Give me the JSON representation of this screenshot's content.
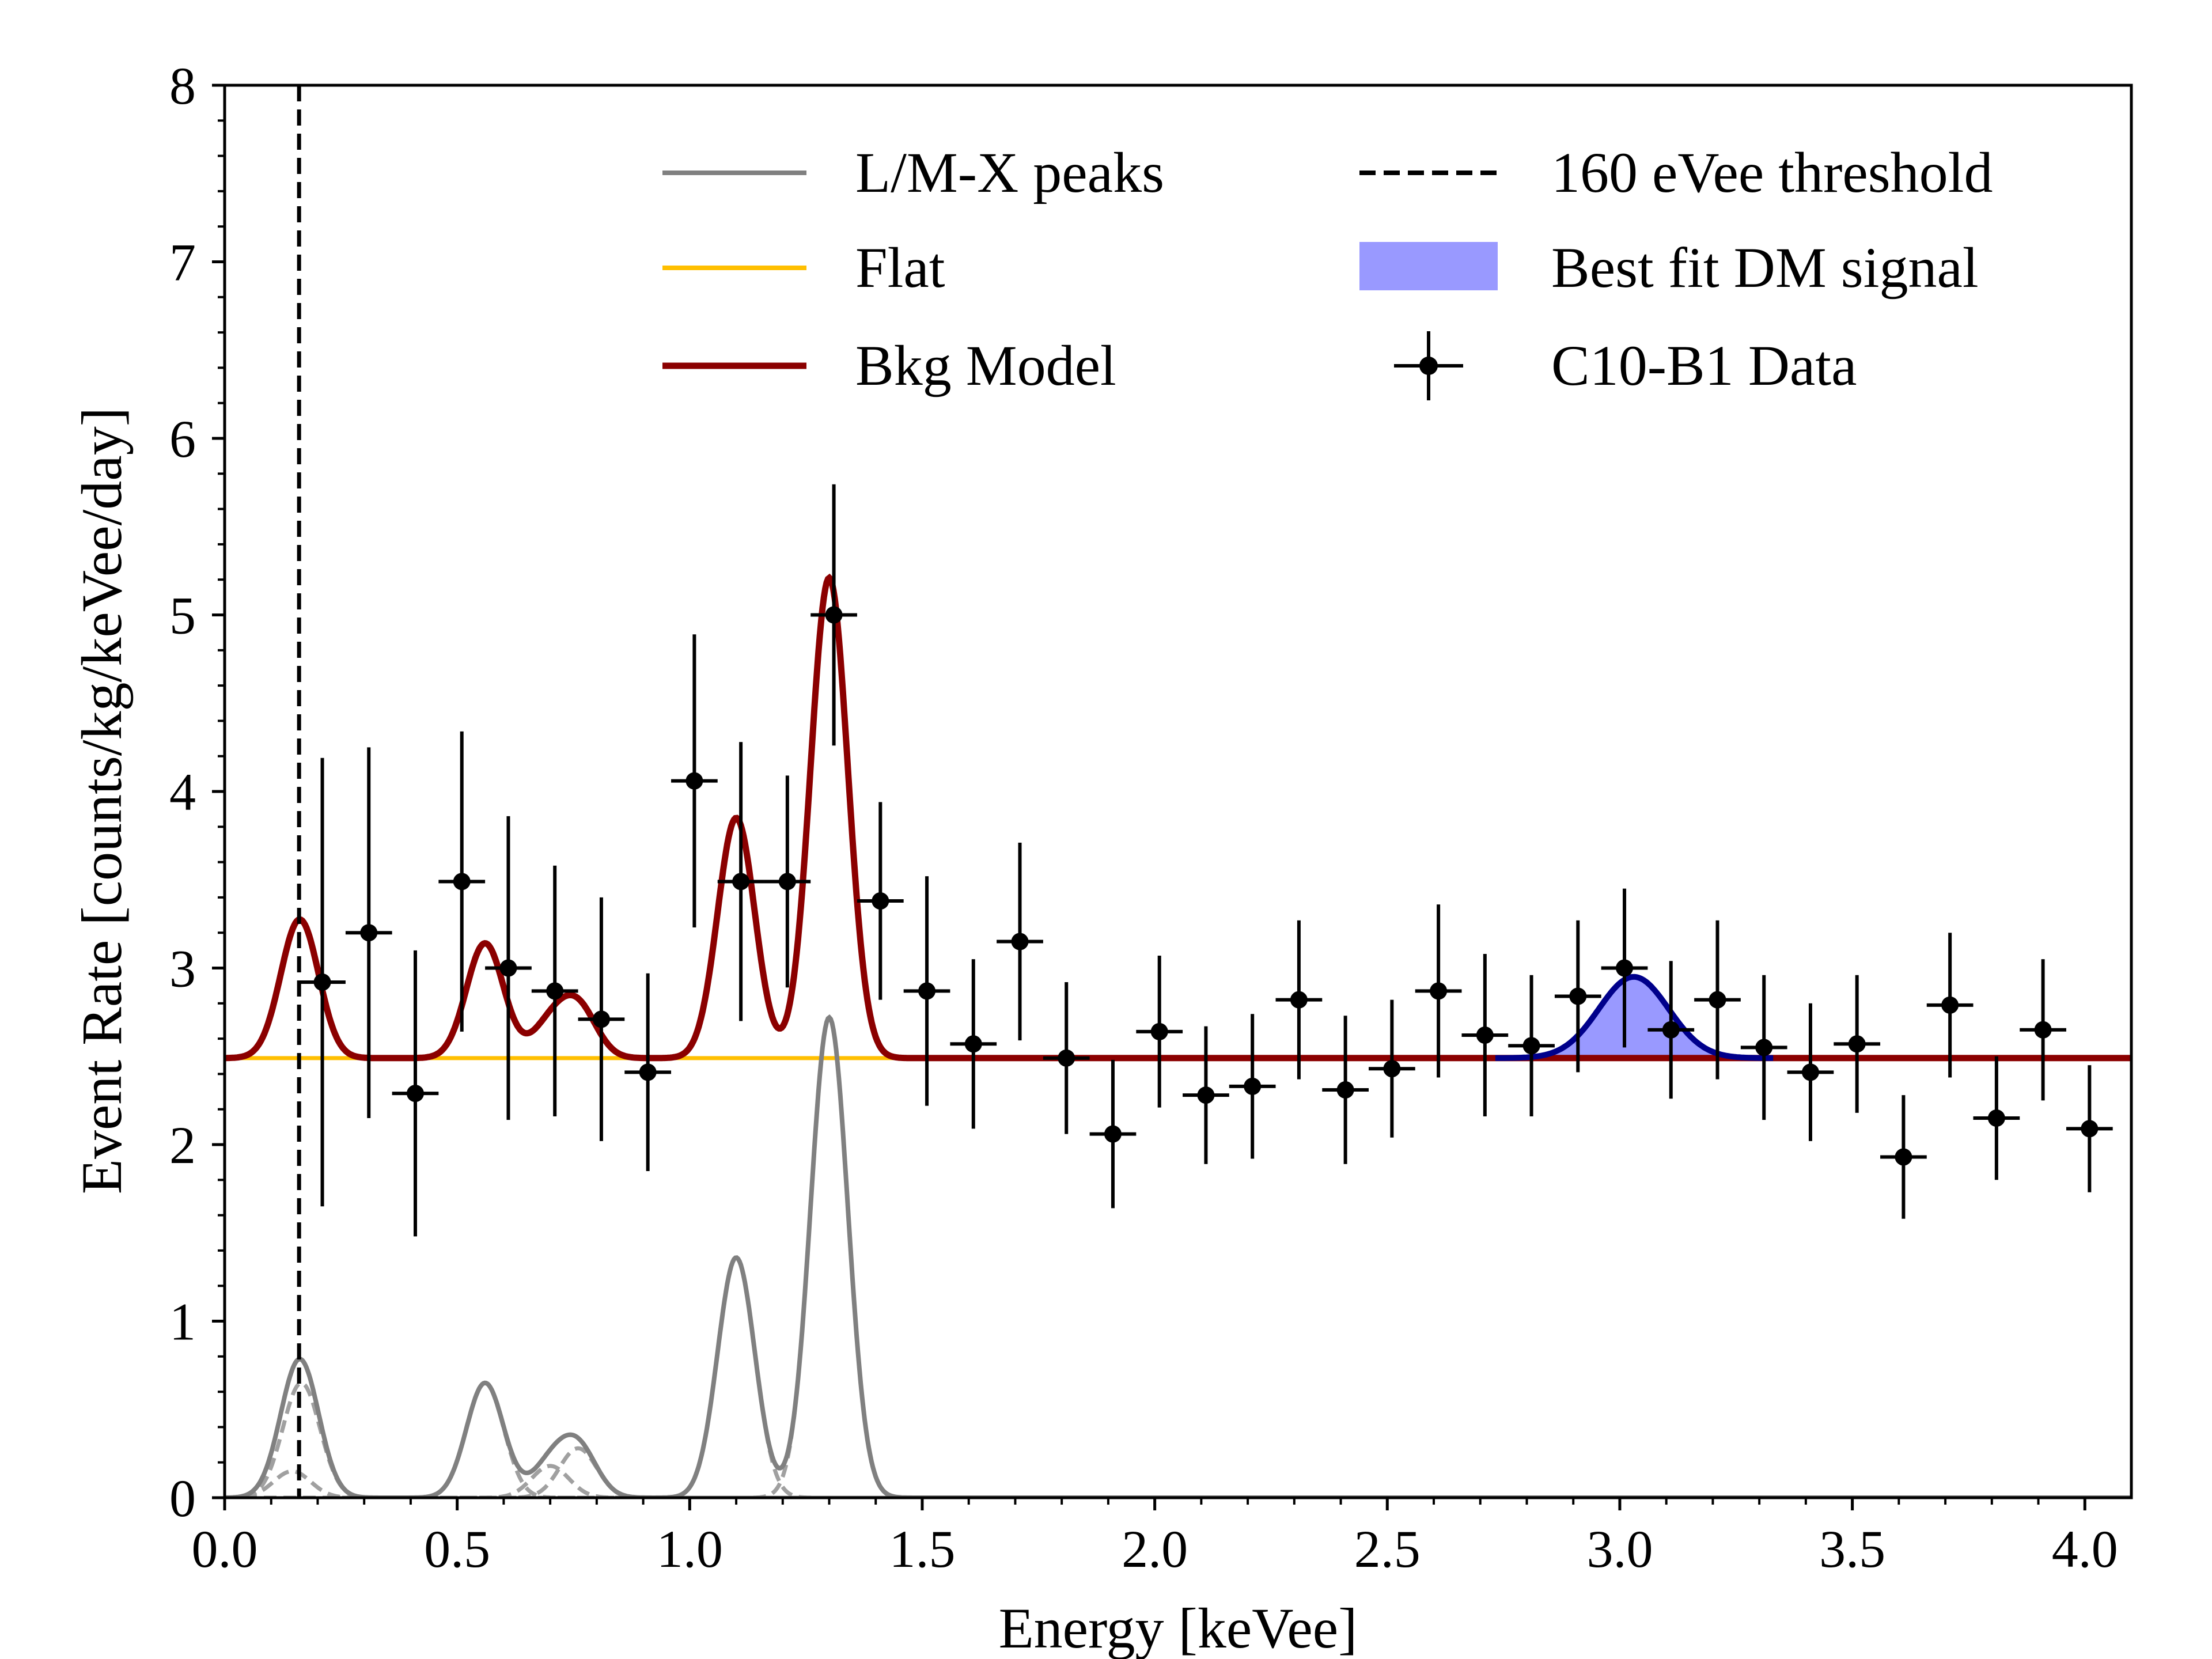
{
  "chart_data": {
    "type": "line",
    "title": "",
    "xlabel": "Energy [keVee]",
    "ylabel": "Event Rate [counts/kg/keVee/day]",
    "xlim": [
      0.0,
      4.1
    ],
    "ylim": [
      0,
      8
    ],
    "xticks": [
      0.0,
      0.5,
      1.0,
      1.5,
      2.0,
      2.5,
      3.0,
      3.5,
      4.0
    ],
    "xtick_labels": [
      "0.0",
      "0.5",
      "1.0",
      "1.5",
      "2.0",
      "2.5",
      "3.0",
      "3.5",
      "4.0"
    ],
    "yticks": [
      0,
      1,
      2,
      3,
      4,
      5,
      6,
      7,
      8
    ],
    "ytick_labels": [
      "0",
      "1",
      "2",
      "3",
      "4",
      "5",
      "6",
      "7",
      "8"
    ],
    "grid": false,
    "legend": {
      "location": "top-right",
      "entries": [
        {
          "label": "L/M-X peaks",
          "style": "gray-line"
        },
        {
          "label": "160 eVee threshold",
          "style": "black-dashed"
        },
        {
          "label": "Flat",
          "style": "yellow-line"
        },
        {
          "label": "Best fit DM signal",
          "style": "blue-patch"
        },
        {
          "label": "Bkg Model",
          "style": "darkred-line"
        },
        {
          "label": "C10-B1 Data",
          "style": "errorbar"
        }
      ]
    },
    "threshold_keVee": 0.16,
    "flat_level": 2.49,
    "lm_x_peaks": [
      {
        "center": 0.16,
        "sigma": 0.045,
        "components": [
          {
            "center": 0.145,
            "amp": 0.15,
            "sigma": 0.04
          },
          {
            "center": 0.165,
            "amp": 0.65,
            "sigma": 0.04
          }
        ]
      },
      {
        "center": 0.56,
        "amp": 0.65,
        "sigma": 0.04
      },
      {
        "center": 0.74,
        "sigma": 0.045,
        "components": [
          {
            "center": 0.7,
            "amp": 0.18,
            "sigma": 0.04
          },
          {
            "center": 0.76,
            "amp": 0.28,
            "sigma": 0.04
          }
        ]
      },
      {
        "center": 1.1,
        "amp": 1.36,
        "sigma": 0.04
      },
      {
        "center": 1.3,
        "amp": 2.72,
        "sigma": 0.04
      }
    ],
    "dm_signal": {
      "center": 3.03,
      "amp": 0.46,
      "sigma": 0.075
    },
    "series": [
      {
        "name": "C10-B1 Data",
        "x": [
          0.21,
          0.31,
          0.41,
          0.51,
          0.61,
          0.71,
          0.81,
          0.91,
          1.01,
          1.11,
          1.21,
          1.31,
          1.41,
          1.51,
          1.61,
          1.71,
          1.81,
          1.91,
          2.01,
          2.11,
          2.21,
          2.31,
          2.41,
          2.51,
          2.61,
          2.71,
          2.81,
          2.91,
          3.01,
          3.11,
          3.21,
          3.31,
          3.41,
          3.51,
          3.61,
          3.71,
          3.81,
          3.91,
          4.01
        ],
        "y": [
          2.92,
          3.2,
          2.29,
          3.49,
          3.0,
          2.87,
          2.71,
          2.41,
          4.06,
          3.49,
          3.49,
          5.0,
          3.38,
          2.87,
          2.57,
          3.15,
          2.49,
          2.06,
          2.64,
          2.28,
          2.33,
          2.82,
          2.31,
          2.43,
          2.87,
          2.62,
          2.56,
          2.84,
          3.0,
          2.65,
          2.82,
          2.55,
          2.41,
          2.57,
          1.93,
          2.79,
          2.15,
          2.65,
          2.09
        ],
        "yerr": [
          1.27,
          1.05,
          0.81,
          0.85,
          0.86,
          0.71,
          0.69,
          0.56,
          0.83,
          0.79,
          0.6,
          0.74,
          0.56,
          0.65,
          0.48,
          0.56,
          0.43,
          0.42,
          0.43,
          0.39,
          0.41,
          0.45,
          0.42,
          0.39,
          0.49,
          0.46,
          0.4,
          0.43,
          0.45,
          0.39,
          0.45,
          0.41,
          0.39,
          0.39,
          0.35,
          0.41,
          0.35,
          0.4,
          0.36
        ],
        "xerr": 0.05
      }
    ]
  }
}
